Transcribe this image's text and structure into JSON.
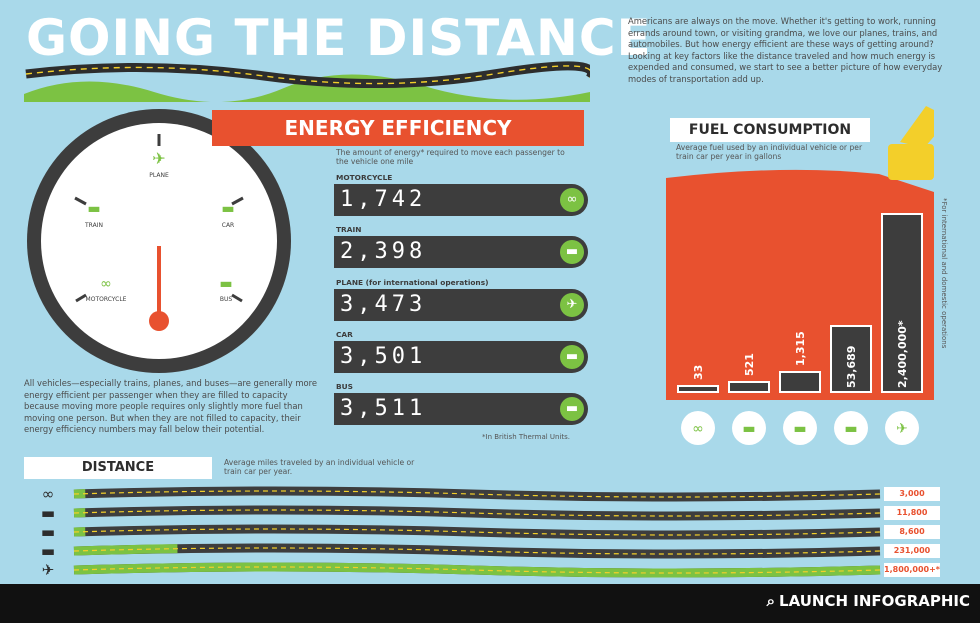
{
  "title": "GOING THE DISTANCE",
  "intro": "Americans are always on the move. Whether it's getting to work, running errands around town, or visiting grandma, we love our planes, trains, and automobiles. But how energy efficient are these ways of getting around? Looking at key factors like the distance traveled and how much energy is expended and consumed, we start to see a better picture of how everyday modes of transportation add up.",
  "colors": {
    "accent": "#e8512f",
    "green": "#7cc243",
    "dark": "#3d3d3d",
    "sky": "#a9d9ea",
    "yellow": "#f3cf2a"
  },
  "gauge": {
    "labels": [
      {
        "text": "PLANE",
        "icon": "plane-icon",
        "glyph": "✈"
      },
      {
        "text": "TRAIN",
        "icon": "train-icon",
        "glyph": "▬"
      },
      {
        "text": "CAR",
        "icon": "car-icon",
        "glyph": "▬"
      },
      {
        "text": "MOTORCYCLE",
        "icon": "motorcycle-icon",
        "glyph": "∞"
      },
      {
        "text": "BUS",
        "icon": "bus-icon",
        "glyph": "▬"
      }
    ],
    "note": "All vehicles—especially trains, planes, and buses—are generally more energy efficient per passenger when they are filled to capacity because moving more people requires only slightly more fuel than moving one person. But when they are not filled to capacity, their energy efficiency numbers may fall below their potential."
  },
  "energy": {
    "title": "ENERGY EFFICIENCY",
    "subtitle": "The amount of energy* required to move each passenger to the vehicle one mile",
    "footnote": "*In British Thermal Units.",
    "items": [
      {
        "label": "MOTORCYCLE",
        "value": "1,742",
        "icon": "motorcycle-icon"
      },
      {
        "label": "TRAIN",
        "value": "2,398",
        "icon": "train-icon"
      },
      {
        "label": "PLANE (for international operations)",
        "value": "3,473",
        "icon": "plane-icon"
      },
      {
        "label": "CAR",
        "value": "3,501",
        "icon": "car-icon"
      },
      {
        "label": "BUS",
        "value": "3,511",
        "icon": "bus-icon"
      }
    ]
  },
  "chart_data": [
    {
      "type": "bar",
      "title": "FUEL CONSUMPTION",
      "subtitle": "Average fuel used by an individual vehicle or per train car per year in gallons",
      "side_note": "*For international and domestic operations",
      "categories": [
        "motorcycle",
        "car",
        "train",
        "bus",
        "plane"
      ],
      "values": [
        33,
        521,
        1315,
        53689,
        2400000
      ],
      "value_labels": [
        "33",
        "521",
        "1,315",
        "53,689",
        "2,400,000*"
      ],
      "icons": [
        "motorcycle-icon",
        "car-icon",
        "train-icon",
        "bus-icon",
        "plane-icon"
      ],
      "bar_fraction": [
        0.03,
        0.05,
        0.1,
        0.33,
        0.89
      ]
    },
    {
      "type": "bar",
      "title": "DISTANCE",
      "subtitle": "Average miles traveled by an individual vehicle or train car per year.",
      "categories": [
        "motorcycle",
        "car",
        "train",
        "bus",
        "plane"
      ],
      "values": [
        3000,
        11800,
        8600,
        231000,
        1800000
      ],
      "value_labels": [
        "3,000",
        "11,800",
        "8,600",
        "231,000",
        "1,800,000+*"
      ],
      "icons": [
        "motorcycle-icon",
        "car-icon",
        "train-icon",
        "bus-icon",
        "plane-icon"
      ],
      "max": 1800000
    }
  ],
  "footer": {
    "launch": "LAUNCH INFOGRAPHIC"
  }
}
